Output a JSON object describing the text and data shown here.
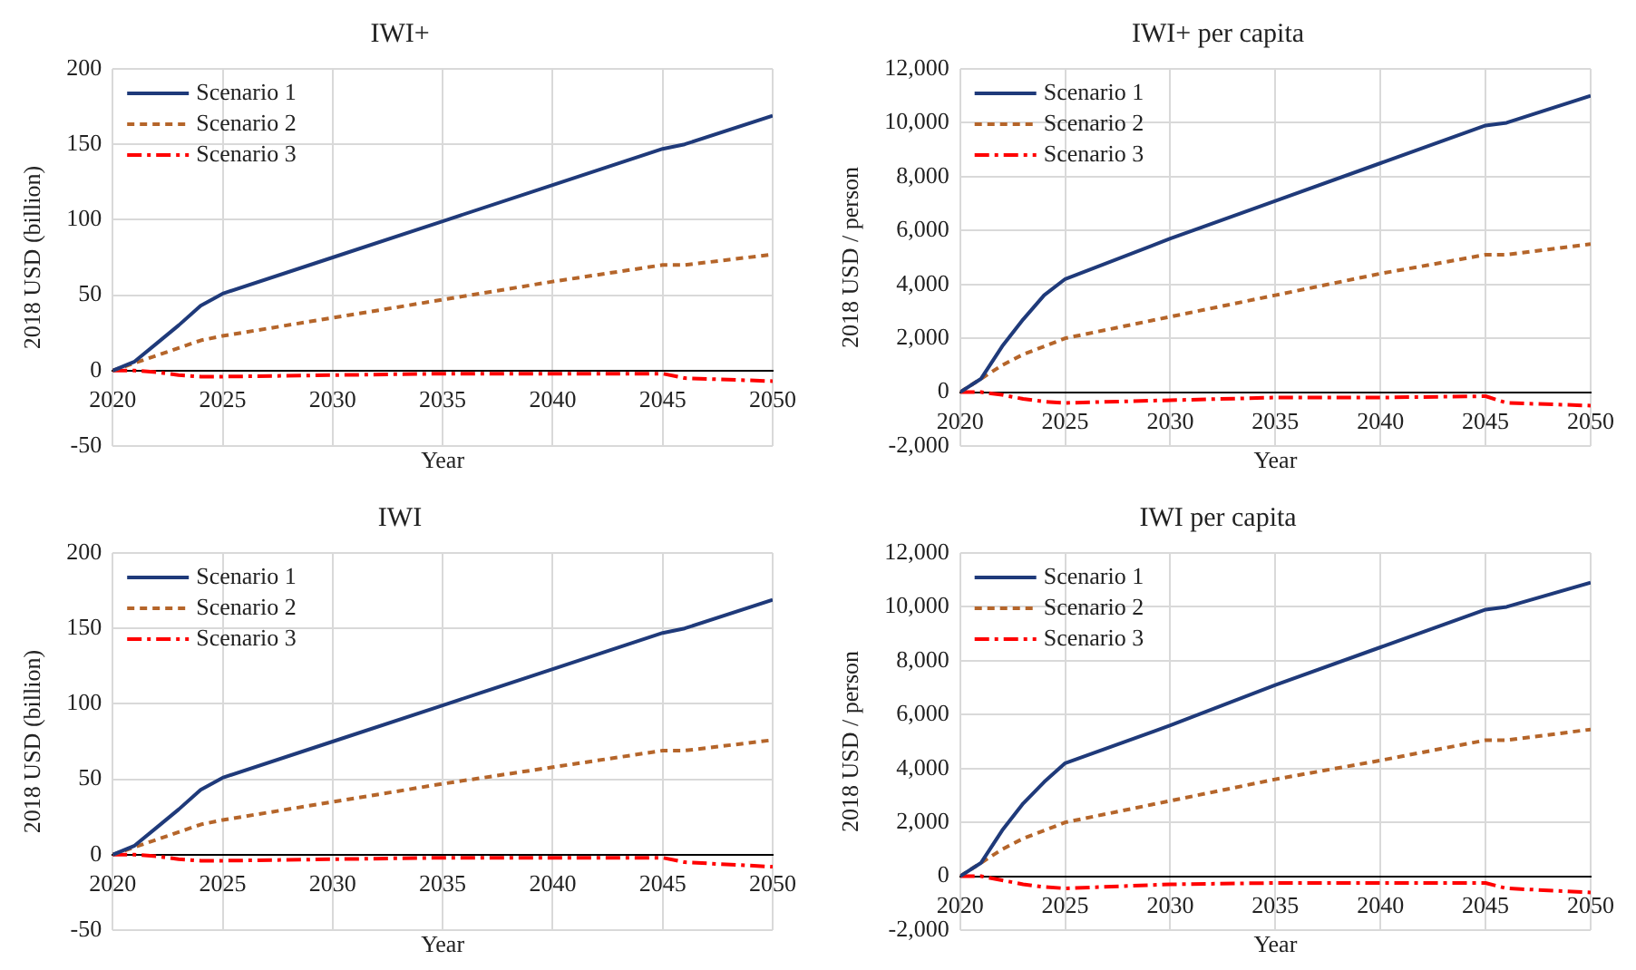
{
  "chart_data": [
    {
      "type": "line",
      "title": "IWI+",
      "xlabel": "Year",
      "ylabel": "2018 USD (billion)",
      "x": [
        2020,
        2021,
        2022,
        2023,
        2024,
        2025,
        2030,
        2035,
        2040,
        2045,
        2046,
        2050
      ],
      "series": [
        {
          "name": "Scenario 1",
          "color": "#1f3a7a",
          "line_style": "solid",
          "values": [
            0,
            6,
            18,
            30,
            43,
            51,
            75,
            99,
            123,
            147,
            150,
            169
          ]
        },
        {
          "name": "Scenario 2",
          "color": "#b5652a",
          "line_style": "dashed",
          "values": [
            0,
            5,
            10,
            15,
            20,
            23,
            35,
            47,
            59,
            70,
            70,
            77
          ]
        },
        {
          "name": "Scenario 3",
          "color": "#ff0000",
          "line_style": "dashdot",
          "values": [
            0,
            0,
            -1,
            -3,
            -4,
            -4,
            -3,
            -2,
            -2,
            -2,
            -5,
            -7
          ]
        }
      ],
      "xlim": [
        2020,
        2050
      ],
      "xticks": [
        2020,
        2025,
        2030,
        2035,
        2040,
        2045,
        2050
      ],
      "ylim": [
        -50,
        200
      ],
      "yticks": [
        -50,
        0,
        50,
        100,
        150,
        200
      ],
      "grid": true,
      "legend": "top left",
      "marker": "none"
    },
    {
      "type": "line",
      "title": "IWI+ per capita",
      "xlabel": "Year",
      "ylabel": "2018 USD / person",
      "x": [
        2020,
        2021,
        2022,
        2023,
        2024,
        2025,
        2030,
        2035,
        2040,
        2045,
        2046,
        2050
      ],
      "series": [
        {
          "name": "Scenario 1",
          "color": "#1f3a7a",
          "line_style": "solid",
          "values": [
            0,
            500,
            1700,
            2700,
            3600,
            4200,
            5700,
            7100,
            8500,
            9900,
            10000,
            11000
          ]
        },
        {
          "name": "Scenario 2",
          "color": "#b5652a",
          "line_style": "dashed",
          "values": [
            0,
            500,
            1000,
            1400,
            1700,
            2000,
            2800,
            3600,
            4400,
            5100,
            5100,
            5500
          ]
        },
        {
          "name": "Scenario 3",
          "color": "#ff0000",
          "line_style": "dashdot",
          "values": [
            0,
            0,
            -100,
            -250,
            -350,
            -400,
            -300,
            -200,
            -200,
            -150,
            -400,
            -500
          ]
        }
      ],
      "xlim": [
        2020,
        2050
      ],
      "xticks": [
        2020,
        2025,
        2030,
        2035,
        2040,
        2045,
        2050
      ],
      "ylim": [
        -2000,
        12000
      ],
      "yticks": [
        {
          "value": -2000,
          "label": "-2,000"
        },
        0,
        {
          "value": 2000,
          "label": "2,000"
        },
        {
          "value": 4000,
          "label": "4,000"
        },
        {
          "value": 6000,
          "label": "6,000"
        },
        {
          "value": 8000,
          "label": "8,000"
        },
        {
          "value": 10000,
          "label": "10,000"
        },
        {
          "value": 12000,
          "label": "12,000"
        }
      ],
      "grid": true,
      "legend": "top left",
      "marker": "none"
    },
    {
      "type": "line",
      "title": "IWI",
      "xlabel": "Year",
      "ylabel": "2018 USD (billion)",
      "x": [
        2020,
        2021,
        2022,
        2023,
        2024,
        2025,
        2030,
        2035,
        2040,
        2045,
        2046,
        2050
      ],
      "series": [
        {
          "name": "Scenario 1",
          "color": "#1f3a7a",
          "line_style": "solid",
          "values": [
            0,
            6,
            18,
            30,
            43,
            51,
            75,
            99,
            123,
            147,
            150,
            169
          ]
        },
        {
          "name": "Scenario 2",
          "color": "#b5652a",
          "line_style": "dashed",
          "values": [
            0,
            5,
            10,
            15,
            20,
            23,
            35,
            47,
            58,
            69,
            69,
            76
          ]
        },
        {
          "name": "Scenario 3",
          "color": "#ff0000",
          "line_style": "dashdot",
          "values": [
            0,
            0,
            -1,
            -3,
            -4,
            -4,
            -3,
            -2,
            -2,
            -2,
            -5,
            -8
          ]
        }
      ],
      "xlim": [
        2020,
        2050
      ],
      "xticks": [
        2020,
        2025,
        2030,
        2035,
        2040,
        2045,
        2050
      ],
      "ylim": [
        -50,
        200
      ],
      "yticks": [
        -50,
        0,
        50,
        100,
        150,
        200
      ],
      "grid": true,
      "legend": "top left",
      "marker": "none"
    },
    {
      "type": "line",
      "title": "IWI per capita",
      "xlabel": "Year",
      "ylabel": "2018 USD / person",
      "x": [
        2020,
        2021,
        2022,
        2023,
        2024,
        2025,
        2030,
        2035,
        2040,
        2045,
        2046,
        2050
      ],
      "series": [
        {
          "name": "Scenario 1",
          "color": "#1f3a7a",
          "line_style": "solid",
          "values": [
            0,
            500,
            1700,
            2700,
            3500,
            4200,
            5600,
            7100,
            8500,
            9900,
            10000,
            10900
          ]
        },
        {
          "name": "Scenario 2",
          "color": "#b5652a",
          "line_style": "dashed",
          "values": [
            0,
            500,
            1000,
            1400,
            1700,
            2000,
            2800,
            3600,
            4300,
            5050,
            5050,
            5450
          ]
        },
        {
          "name": "Scenario 3",
          "color": "#ff0000",
          "line_style": "dashdot",
          "values": [
            0,
            0,
            -150,
            -300,
            -400,
            -450,
            -300,
            -250,
            -250,
            -250,
            -450,
            -600
          ]
        }
      ],
      "xlim": [
        2020,
        2050
      ],
      "xticks": [
        2020,
        2025,
        2030,
        2035,
        2040,
        2045,
        2050
      ],
      "ylim": [
        -2000,
        12000
      ],
      "yticks": [
        {
          "value": -2000,
          "label": "-2,000"
        },
        0,
        {
          "value": 2000,
          "label": "2,000"
        },
        {
          "value": 4000,
          "label": "4,000"
        },
        {
          "value": 6000,
          "label": "6,000"
        },
        {
          "value": 8000,
          "label": "8,000"
        },
        {
          "value": 10000,
          "label": "10,000"
        },
        {
          "value": 12000,
          "label": "12,000"
        }
      ],
      "grid": true,
      "legend": "top left",
      "marker": "none"
    }
  ]
}
